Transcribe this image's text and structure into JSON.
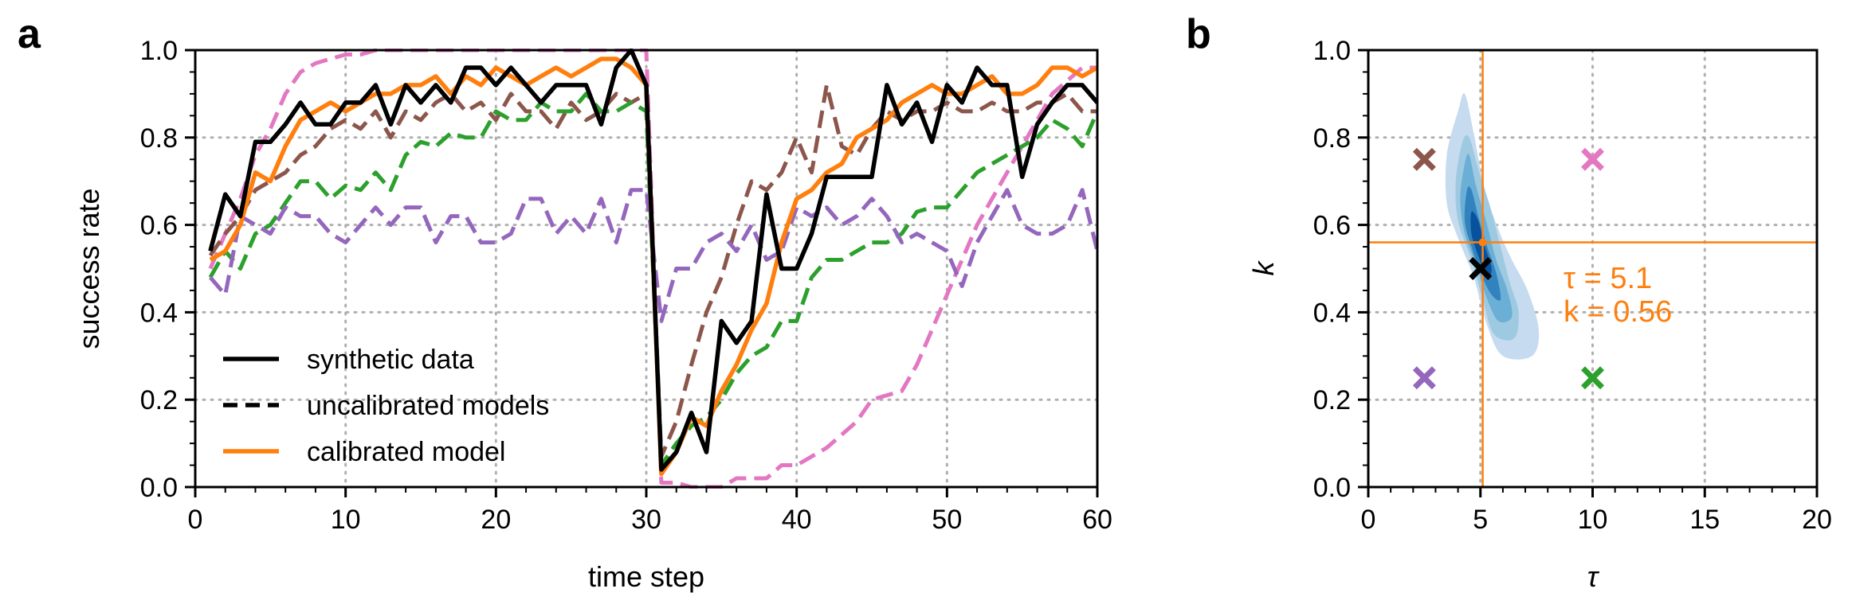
{
  "panels": {
    "a": "a",
    "b": "b"
  },
  "chart_data": [
    {
      "type": "line",
      "panel": "a",
      "xlabel": "time step",
      "ylabel": "success rate",
      "xlim": [
        0,
        60
      ],
      "ylim": [
        0,
        1
      ],
      "xticks": [
        0,
        10,
        20,
        30,
        40,
        50,
        60
      ],
      "yticks": [
        0.0,
        0.2,
        0.4,
        0.6,
        0.8,
        1.0
      ],
      "xtick_labels": [
        "0",
        "10",
        "20",
        "30",
        "40",
        "50",
        "60"
      ],
      "ytick_labels": [
        "0.0",
        "0.2",
        "0.4",
        "0.6",
        "0.8",
        "1.0"
      ],
      "grid": true,
      "legend_position": "lower-left",
      "legend": [
        {
          "label": "synthetic data",
          "style": "solid",
          "color": "#000000"
        },
        {
          "label": "uncalibrated models",
          "style": "dashed",
          "color": "#000000"
        },
        {
          "label": "calibrated model",
          "style": "solid",
          "color": "#ff7f0e"
        }
      ],
      "x": [
        1,
        2,
        3,
        4,
        5,
        6,
        7,
        8,
        9,
        10,
        11,
        12,
        13,
        14,
        15,
        16,
        17,
        18,
        19,
        20,
        21,
        22,
        23,
        24,
        25,
        26,
        27,
        28,
        29,
        30,
        31,
        32,
        33,
        34,
        35,
        36,
        37,
        38,
        39,
        40,
        41,
        42,
        43,
        44,
        45,
        46,
        47,
        48,
        49,
        50,
        51,
        52,
        53,
        54,
        55,
        56,
        57,
        58,
        59,
        60
      ],
      "series": [
        {
          "color": "#e377c2",
          "style": "dashed",
          "values": [
            0.5,
            0.58,
            0.66,
            0.76,
            0.82,
            0.9,
            0.95,
            0.97,
            0.98,
            0.99,
            0.99,
            1.0,
            1.0,
            1.0,
            1.0,
            1.0,
            1.0,
            1.0,
            1.0,
            1.0,
            1.0,
            1.0,
            1.0,
            1.0,
            1.0,
            1.0,
            1.0,
            1.0,
            1.0,
            1.0,
            0.01,
            0.01,
            0.0,
            0.0,
            0.0,
            0.02,
            0.02,
            0.02,
            0.05,
            0.05,
            0.07,
            0.09,
            0.12,
            0.15,
            0.2,
            0.21,
            0.22,
            0.28,
            0.36,
            0.44,
            0.52,
            0.6,
            0.66,
            0.72,
            0.78,
            0.84,
            0.9,
            0.93,
            0.96,
            0.96
          ]
        },
        {
          "color": "#8c564b",
          "style": "dashed",
          "values": [
            0.53,
            0.58,
            0.62,
            0.68,
            0.7,
            0.72,
            0.76,
            0.78,
            0.82,
            0.84,
            0.82,
            0.86,
            0.8,
            0.86,
            0.84,
            0.88,
            0.9,
            0.86,
            0.88,
            0.84,
            0.9,
            0.86,
            0.86,
            0.82,
            0.88,
            0.84,
            0.86,
            0.9,
            0.88,
            0.9,
            0.07,
            0.15,
            0.28,
            0.4,
            0.48,
            0.6,
            0.7,
            0.68,
            0.72,
            0.8,
            0.72,
            0.92,
            0.78,
            0.76,
            0.82,
            0.86,
            0.84,
            0.86,
            0.86,
            0.88,
            0.86,
            0.86,
            0.88,
            0.86,
            0.86,
            0.88,
            0.88,
            0.9,
            0.86,
            0.86
          ]
        },
        {
          "color": "#2ca02c",
          "style": "dashed",
          "values": [
            0.48,
            0.54,
            0.5,
            0.58,
            0.6,
            0.65,
            0.7,
            0.7,
            0.66,
            0.69,
            0.68,
            0.72,
            0.68,
            0.76,
            0.79,
            0.78,
            0.81,
            0.8,
            0.8,
            0.86,
            0.84,
            0.84,
            0.88,
            0.86,
            0.86,
            0.9,
            0.86,
            0.86,
            0.88,
            0.86,
            0.05,
            0.1,
            0.14,
            0.16,
            0.2,
            0.26,
            0.3,
            0.32,
            0.38,
            0.38,
            0.48,
            0.52,
            0.52,
            0.54,
            0.56,
            0.56,
            0.58,
            0.63,
            0.64,
            0.64,
            0.68,
            0.72,
            0.74,
            0.76,
            0.78,
            0.8,
            0.84,
            0.82,
            0.78,
            0.86
          ]
        },
        {
          "color": "#9467bd",
          "style": "dashed",
          "values": [
            0.48,
            0.44,
            0.62,
            0.6,
            0.58,
            0.64,
            0.62,
            0.62,
            0.58,
            0.56,
            0.6,
            0.64,
            0.6,
            0.64,
            0.64,
            0.56,
            0.62,
            0.62,
            0.56,
            0.56,
            0.58,
            0.66,
            0.66,
            0.58,
            0.62,
            0.58,
            0.66,
            0.56,
            0.68,
            0.68,
            0.38,
            0.5,
            0.5,
            0.56,
            0.58,
            0.54,
            0.6,
            0.52,
            0.54,
            0.64,
            0.62,
            0.64,
            0.6,
            0.62,
            0.66,
            0.62,
            0.56,
            0.58,
            0.56,
            0.54,
            0.46,
            0.56,
            0.62,
            0.68,
            0.6,
            0.58,
            0.58,
            0.6,
            0.68,
            0.54
          ]
        },
        {
          "color": "#ff7f0e",
          "style": "solid",
          "values": [
            0.52,
            0.54,
            0.6,
            0.72,
            0.7,
            0.78,
            0.84,
            0.86,
            0.88,
            0.86,
            0.88,
            0.9,
            0.9,
            0.92,
            0.92,
            0.94,
            0.9,
            0.94,
            0.92,
            0.96,
            0.94,
            0.92,
            0.94,
            0.96,
            0.94,
            0.96,
            0.98,
            0.98,
            0.96,
            0.92,
            0.03,
            0.08,
            0.16,
            0.14,
            0.22,
            0.28,
            0.36,
            0.42,
            0.56,
            0.66,
            0.68,
            0.72,
            0.74,
            0.8,
            0.82,
            0.84,
            0.88,
            0.9,
            0.92,
            0.9,
            0.9,
            0.92,
            0.94,
            0.9,
            0.9,
            0.92,
            0.96,
            0.96,
            0.94,
            0.96
          ]
        },
        {
          "color": "#000000",
          "style": "solid",
          "values": [
            0.54,
            0.67,
            0.62,
            0.79,
            0.79,
            0.83,
            0.88,
            0.83,
            0.83,
            0.88,
            0.88,
            0.92,
            0.83,
            0.92,
            0.88,
            0.92,
            0.88,
            0.96,
            0.96,
            0.92,
            0.96,
            0.92,
            0.88,
            0.92,
            0.92,
            0.92,
            0.83,
            0.96,
            1.0,
            0.92,
            0.04,
            0.08,
            0.17,
            0.08,
            0.38,
            0.33,
            0.38,
            0.67,
            0.5,
            0.5,
            0.58,
            0.71,
            0.71,
            0.71,
            0.71,
            0.92,
            0.83,
            0.88,
            0.79,
            0.92,
            0.88,
            0.96,
            0.92,
            0.92,
            0.71,
            0.83,
            0.88,
            0.92,
            0.92,
            0.88
          ]
        }
      ]
    },
    {
      "type": "scatter",
      "panel": "b",
      "xlabel": "τ",
      "ylabel": "k",
      "xlim": [
        0,
        20
      ],
      "ylim": [
        0,
        1
      ],
      "xticks": [
        0,
        5,
        10,
        15,
        20
      ],
      "yticks": [
        0.0,
        0.2,
        0.4,
        0.6,
        0.8,
        1.0
      ],
      "xtick_labels": [
        "0",
        "5",
        "10",
        "15",
        "20"
      ],
      "ytick_labels": [
        "0.0",
        "0.2",
        "0.4",
        "0.6",
        "0.8",
        "1.0"
      ],
      "grid": true,
      "points": [
        {
          "x": 2.5,
          "y": 0.75,
          "marker": "x",
          "color": "#8c564b"
        },
        {
          "x": 10,
          "y": 0.75,
          "marker": "x",
          "color": "#e377c2"
        },
        {
          "x": 2.5,
          "y": 0.25,
          "marker": "x",
          "color": "#9467bd"
        },
        {
          "x": 10,
          "y": 0.25,
          "marker": "x",
          "color": "#2ca02c"
        },
        {
          "x": 5,
          "y": 0.5,
          "marker": "x",
          "color": "#000000"
        }
      ],
      "estimate": {
        "tau": 5.1,
        "k": 0.56,
        "color": "#ff7f0e",
        "label_tau": "τ = 5.1",
        "label_k": "k = 0.56"
      },
      "density": {
        "type": "contour",
        "levels": [
          {
            "color": "#c6dbef",
            "outline": [
              [
                4.0,
                0.86
              ],
              [
                3.5,
                0.76
              ],
              [
                3.5,
                0.65
              ],
              [
                4.0,
                0.57
              ],
              [
                4.7,
                0.48
              ],
              [
                5.3,
                0.37
              ],
              [
                6.0,
                0.3
              ],
              [
                7.3,
                0.3
              ],
              [
                7.6,
                0.36
              ],
              [
                7.1,
                0.45
              ],
              [
                6.4,
                0.52
              ],
              [
                5.8,
                0.59
              ],
              [
                5.2,
                0.68
              ],
              [
                4.7,
                0.81
              ],
              [
                4.3,
                0.9
              ]
            ]
          },
          {
            "color": "#9ecae1",
            "outline": [
              [
                4.2,
                0.79
              ],
              [
                3.9,
                0.7
              ],
              [
                4.0,
                0.61
              ],
              [
                4.6,
                0.52
              ],
              [
                5.1,
                0.43
              ],
              [
                5.6,
                0.35
              ],
              [
                6.5,
                0.34
              ],
              [
                6.7,
                0.4
              ],
              [
                6.3,
                0.47
              ],
              [
                5.9,
                0.55
              ],
              [
                5.5,
                0.63
              ],
              [
                4.9,
                0.73
              ],
              [
                4.5,
                0.8
              ]
            ]
          },
          {
            "color": "#6baed6",
            "outline": [
              [
                4.3,
                0.74
              ],
              [
                4.1,
                0.66
              ],
              [
                4.3,
                0.58
              ],
              [
                4.8,
                0.51
              ],
              [
                5.3,
                0.43
              ],
              [
                5.8,
                0.38
              ],
              [
                6.4,
                0.39
              ],
              [
                6.2,
                0.45
              ],
              [
                5.7,
                0.52
              ],
              [
                5.3,
                0.6
              ],
              [
                4.8,
                0.69
              ],
              [
                4.5,
                0.76
              ]
            ]
          },
          {
            "color": "#3182bd",
            "outline": [
              [
                4.4,
                0.68
              ],
              [
                4.3,
                0.61
              ],
              [
                4.6,
                0.55
              ],
              [
                5.0,
                0.49
              ],
              [
                5.5,
                0.44
              ],
              [
                5.9,
                0.43
              ],
              [
                5.7,
                0.49
              ],
              [
                5.3,
                0.55
              ],
              [
                4.9,
                0.62
              ],
              [
                4.6,
                0.68
              ]
            ]
          },
          {
            "color": "#08519c",
            "outline": [
              [
                4.6,
                0.63
              ],
              [
                4.6,
                0.58
              ],
              [
                4.9,
                0.53
              ],
              [
                5.3,
                0.48
              ],
              [
                5.5,
                0.5
              ],
              [
                5.2,
                0.55
              ],
              [
                4.9,
                0.61
              ]
            ]
          }
        ]
      }
    }
  ]
}
